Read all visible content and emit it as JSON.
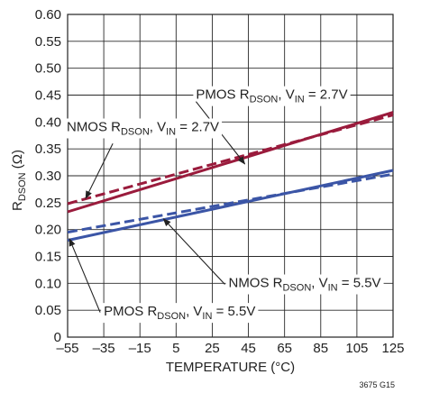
{
  "chart_data": {
    "type": "line",
    "xlabel": "TEMPERATURE (°C)",
    "ylabel": "R",
    "ylabel_sub": "DSON",
    "ylabel_unit": " (Ω)",
    "xlim": [
      -55,
      125
    ],
    "ylim": [
      0,
      0.6
    ],
    "x_ticks": [
      -55,
      -35,
      -15,
      5,
      25,
      45,
      65,
      85,
      105,
      125
    ],
    "x_tick_labels": [
      "–55",
      "–35",
      "–15",
      "5",
      "25",
      "45",
      "65",
      "85",
      "105",
      "125"
    ],
    "y_ticks": [
      0,
      0.05,
      0.1,
      0.15,
      0.2,
      0.25,
      0.3,
      0.35,
      0.4,
      0.45,
      0.5,
      0.55,
      0.6
    ],
    "y_tick_labels": [
      "0",
      "0.05",
      "0.10",
      "0.15",
      "0.20",
      "0.25",
      "0.30",
      "0.35",
      "0.40",
      "0.45",
      "0.50",
      "0.55",
      "0.60"
    ],
    "grid": true,
    "series": [
      {
        "key": "pmos27",
        "color": "#9a1b3c",
        "dash": false,
        "x": [
          -55,
          125
        ],
        "y": [
          0.233,
          0.418
        ]
      },
      {
        "key": "nmos27",
        "color": "#9a1b3c",
        "dash": true,
        "x": [
          -55,
          125
        ],
        "y": [
          0.248,
          0.413
        ]
      },
      {
        "key": "nmos55",
        "color": "#3b55a6",
        "dash": true,
        "x": [
          -55,
          125
        ],
        "y": [
          0.195,
          0.303
        ]
      },
      {
        "key": "pmos55",
        "color": "#3b55a6",
        "dash": false,
        "x": [
          -55,
          125
        ],
        "y": [
          0.18,
          0.31
        ]
      }
    ],
    "annotations": [
      {
        "key": "pmos27",
        "parts": [
          "PMOS R",
          "DSON",
          ", V",
          "IN",
          " = 2.7V"
        ],
        "text_anchor": [
          16,
          0.443
        ],
        "arrow_from": [
          16,
          0.438
        ],
        "arrow_to": [
          43,
          0.322
        ]
      },
      {
        "key": "nmos27",
        "parts": [
          "NMOS R",
          "DSON",
          ", V",
          "IN",
          " = 2.7V"
        ],
        "text_anchor": [
          -55.5,
          0.383
        ],
        "arrow_from": [
          -30,
          0.36
        ],
        "arrow_to": [
          -45,
          0.258
        ]
      },
      {
        "key": "nmos55",
        "parts": [
          "NMOS R",
          "DSON",
          ", V",
          "IN",
          " = 5.5V"
        ],
        "text_anchor": [
          34,
          0.093
        ],
        "arrow_from": [
          32,
          0.098
        ],
        "arrow_to": [
          -2,
          0.22
        ]
      },
      {
        "key": "pmos55",
        "parts": [
          "PMOS R",
          "DSON",
          ", V",
          "IN",
          " = 5.5V"
        ],
        "text_anchor": [
          -35,
          0.04
        ],
        "arrow_from": [
          -37,
          0.046
        ],
        "arrow_to": [
          -54,
          0.183
        ]
      }
    ],
    "figure_id": "3675 G15"
  }
}
